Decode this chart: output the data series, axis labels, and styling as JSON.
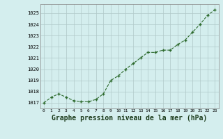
{
  "x": [
    0,
    1,
    2,
    3,
    4,
    5,
    6,
    7,
    8,
    9,
    10,
    11,
    12,
    13,
    14,
    15,
    16,
    17,
    18,
    19,
    20,
    21,
    22,
    23
  ],
  "y": [
    1017.0,
    1017.5,
    1017.8,
    1017.5,
    1017.2,
    1017.1,
    1017.1,
    1017.3,
    1017.8,
    1019.0,
    1019.4,
    1020.0,
    1020.5,
    1021.0,
    1021.5,
    1021.5,
    1021.7,
    1021.7,
    1022.2,
    1022.6,
    1023.3,
    1024.0,
    1024.8,
    1025.3
  ],
  "line_color": "#2d6a2d",
  "marker_color": "#2d6a2d",
  "bg_color": "#d4eeee",
  "grid_color": "#b0c8c8",
  "title": "Graphe pression niveau de la mer (hPa)",
  "title_color": "#1a3a1a",
  "title_fontsize": 7.0,
  "ylabel_ticks": [
    1017,
    1018,
    1019,
    1020,
    1021,
    1022,
    1023,
    1024,
    1025
  ],
  "xlim": [
    -0.5,
    23.5
  ],
  "ylim": [
    1016.5,
    1025.8
  ]
}
